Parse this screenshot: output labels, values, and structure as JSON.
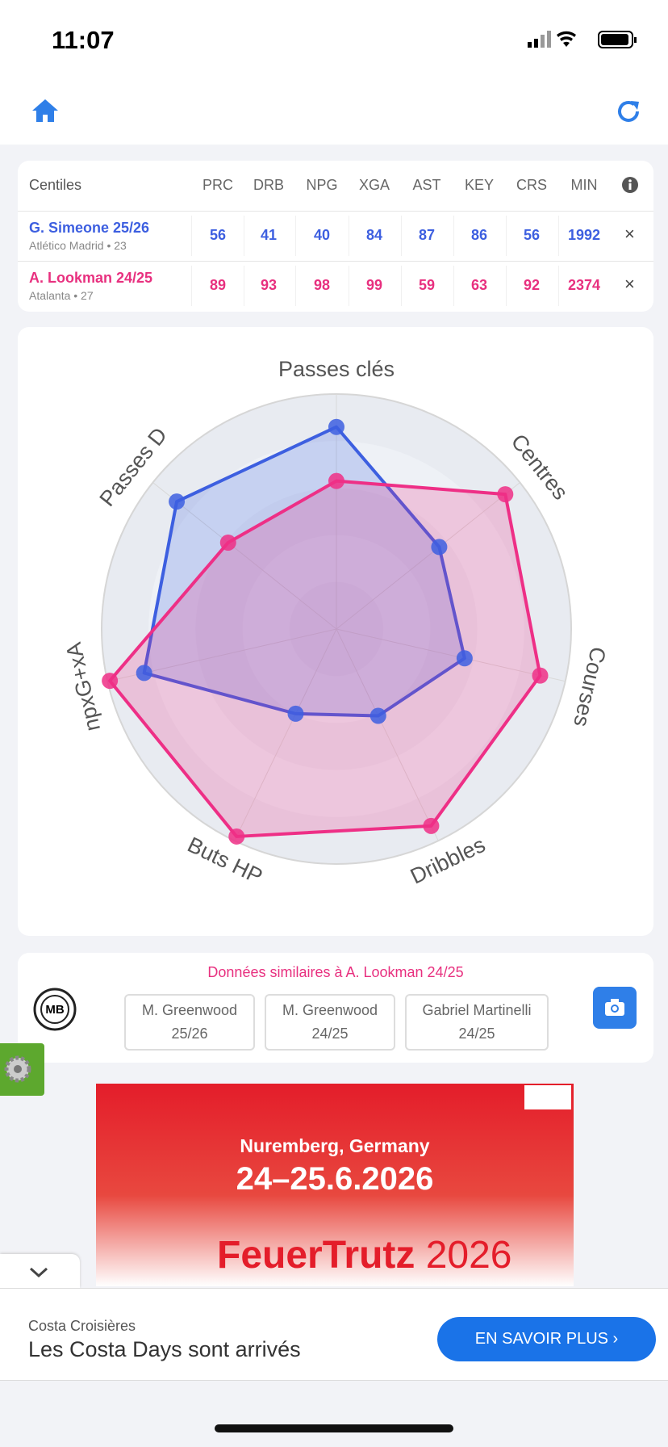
{
  "status_bar": {
    "time": "11:07"
  },
  "table": {
    "header": "Centiles",
    "columns": [
      "PRC",
      "DRB",
      "NPG",
      "XGA",
      "AST",
      "KEY",
      "CRS",
      "MIN"
    ],
    "remove": "×",
    "rows": [
      {
        "name": "G. Simeone 25/26",
        "club": "Atlético Madrid • 23",
        "color": "#3d5fe0",
        "values": [
          56,
          41,
          40,
          84,
          87,
          86,
          56,
          1992
        ]
      },
      {
        "name": "A. Lookman 24/25",
        "club": "Atalanta • 27",
        "color": "#e8307f",
        "values": [
          89,
          93,
          98,
          99,
          59,
          63,
          92,
          2374
        ]
      }
    ]
  },
  "chart_data": {
    "type": "radar",
    "axes": [
      "Passes clés",
      "Centres",
      "Courses",
      "Dribbles",
      "Buts HP",
      "npxG+xA",
      "Passes D"
    ],
    "rlim": [
      0,
      100
    ],
    "rticks": [
      20,
      40,
      60,
      80,
      100
    ],
    "grid": true,
    "series": [
      {
        "color": "#3d5fe0",
        "values": [
          86,
          56,
          56,
          41,
          40,
          84,
          87
        ]
      },
      {
        "color": "#ee2f86",
        "values": [
          63,
          92,
          89,
          93,
          98,
          99,
          59
        ]
      }
    ]
  },
  "similar": {
    "title": "Données similaires à A. Lookman 24/25",
    "logo": "MB",
    "items": [
      {
        "name": "M. Greenwood",
        "season": "25/26"
      },
      {
        "name": "M. Greenwood",
        "season": "24/25"
      },
      {
        "name": "Gabriel Martinelli",
        "season": "24/25"
      }
    ]
  },
  "ad_banner": {
    "location": "Nuremberg, Germany",
    "dates": "24–25.6.2026",
    "brand": "FeuerTrutz",
    "year": "2026"
  },
  "bottom_ad": {
    "advertiser": "Costa Croisières",
    "headline": "Les Costa Days sont arrivés",
    "cta": "EN SAVOIR PLUS"
  }
}
